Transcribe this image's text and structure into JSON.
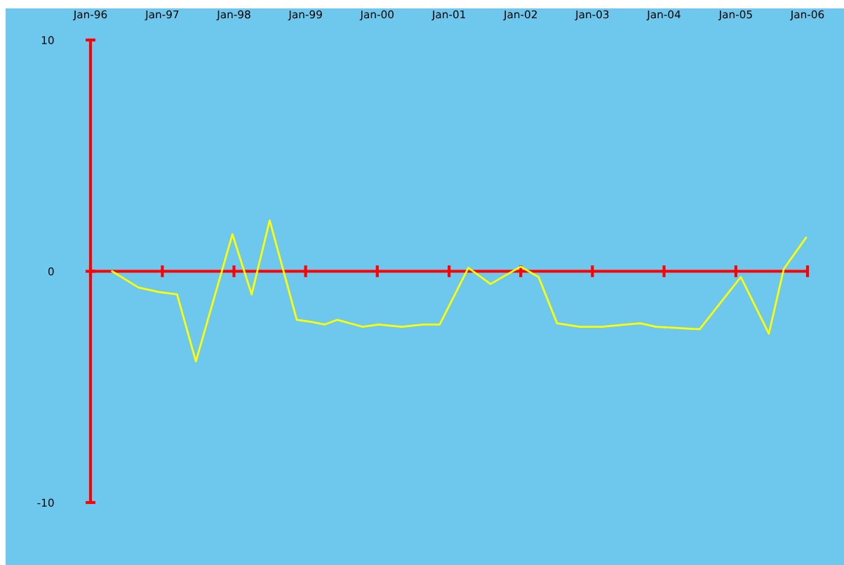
{
  "chart_data": {
    "type": "line",
    "x": [
      "1996-04-20",
      "1996-09-01",
      "1996-12-16",
      "1997-03-17",
      "1997-06-21",
      "1997-12-24",
      "1998-04-01",
      "1998-07-02",
      "1998-11-17",
      "1999-02-06",
      "1999-04-09",
      "1999-06-10",
      "1999-10-19",
      "2000-01-08",
      "2000-05-05",
      "2000-08-22",
      "2000-11-14",
      "2001-04-09",
      "2001-07-31",
      "2002-01-01",
      "2002-04-02",
      "2002-07-05",
      "2002-10-30",
      "2003-02-17",
      "2003-06-21",
      "2003-09-02",
      "2003-11-22",
      "2004-02-28",
      "2004-06-10",
      "2004-07-01",
      "2005-01-26",
      "2005-06-18",
      "2005-09-02",
      "2005-12-24"
    ],
    "series": [
      {
        "color": "#ffff00",
        "values": [
          0,
          -0.7,
          -0.9,
          -1.0,
          -3.9,
          1.6,
          -1.0,
          2.2,
          -2.1,
          -2.2,
          -2.3,
          -2.1,
          -2.4,
          -2.3,
          -2.4,
          -2.3,
          -2.3,
          0.15,
          -0.55,
          0.2,
          -0.25,
          -2.25,
          -2.4,
          -2.4,
          -2.3,
          -2.25,
          -2.4,
          -2.45,
          -2.5,
          -2.5,
          -0.25,
          -2.7,
          0.1,
          1.45
        ]
      }
    ],
    "xlim": [
      "1996-01-01",
      "2006-01-01"
    ],
    "xticks": [
      {
        "value": "1996-01-01",
        "label": "Jan-96"
      },
      {
        "value": "1997-01-01",
        "label": "Jan-97"
      },
      {
        "value": "1998-01-01",
        "label": "Jan-98"
      },
      {
        "value": "1999-01-01",
        "label": "Jan-99"
      },
      {
        "value": "2000-01-01",
        "label": "Jan-00"
      },
      {
        "value": "2001-01-01",
        "label": "Jan-01"
      },
      {
        "value": "2002-01-01",
        "label": "Jan-02"
      },
      {
        "value": "2003-01-01",
        "label": "Jan-03"
      },
      {
        "value": "2004-01-01",
        "label": "Jan-04"
      },
      {
        "value": "2005-01-01",
        "label": "Jan-05"
      },
      {
        "value": "2006-01-01",
        "label": "Jan-06"
      }
    ],
    "ylim": [
      -10,
      10
    ],
    "yticks": [
      -10,
      0,
      10
    ],
    "ref_lines": [
      {
        "axis": "y",
        "value": 0,
        "color": "#ff0000"
      }
    ],
    "grid": false,
    "marker": "none",
    "line_style": "solid"
  }
}
